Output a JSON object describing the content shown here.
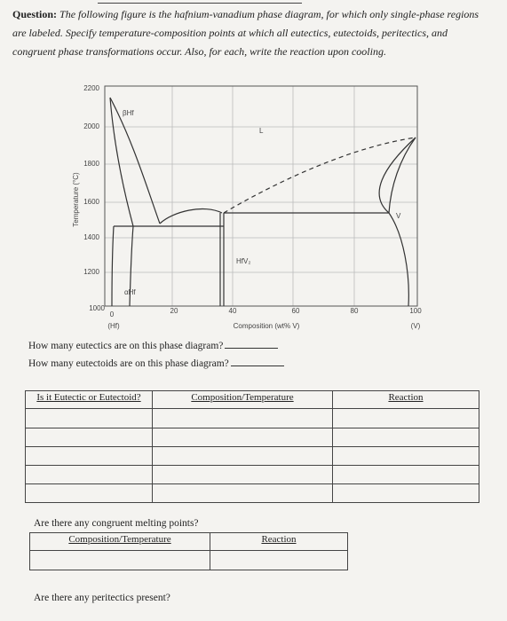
{
  "question": {
    "label": "Question:",
    "text": "The following figure is the hafnium-vanadium phase diagram, for which only single-phase regions are labeled. Specify temperature-composition points at which all eutectics, eutectoids, peritectics, and congruent phase transformations occur. Also, for each, write the reaction upon cooling."
  },
  "diagram": {
    "y_label": "Temperature (°C)",
    "y_ticks": [
      "2200",
      "2000",
      "1800",
      "1600",
      "1400",
      "1200",
      "1000"
    ],
    "x_ticks": [
      "0",
      "20",
      "40",
      "60",
      "80",
      "100"
    ],
    "x_left": "(Hf)",
    "x_label": "Composition (wt% V)",
    "x_right": "(V)",
    "phases": [
      "βHf",
      "L",
      "HfV₂",
      "αHf",
      "V"
    ]
  },
  "questions": [
    "How many eutectics are on this phase diagram?",
    "How many eutectoids are on this phase diagram?",
    "Are there any congruent melting points?",
    "Are there any peritectics present?"
  ],
  "table1": {
    "headers": [
      "Is it Eutectic or Eutectoid?",
      "Composition/Temperature",
      "Reaction"
    ]
  },
  "table2": {
    "headers": [
      "Composition/Temperature",
      "Reaction"
    ]
  }
}
